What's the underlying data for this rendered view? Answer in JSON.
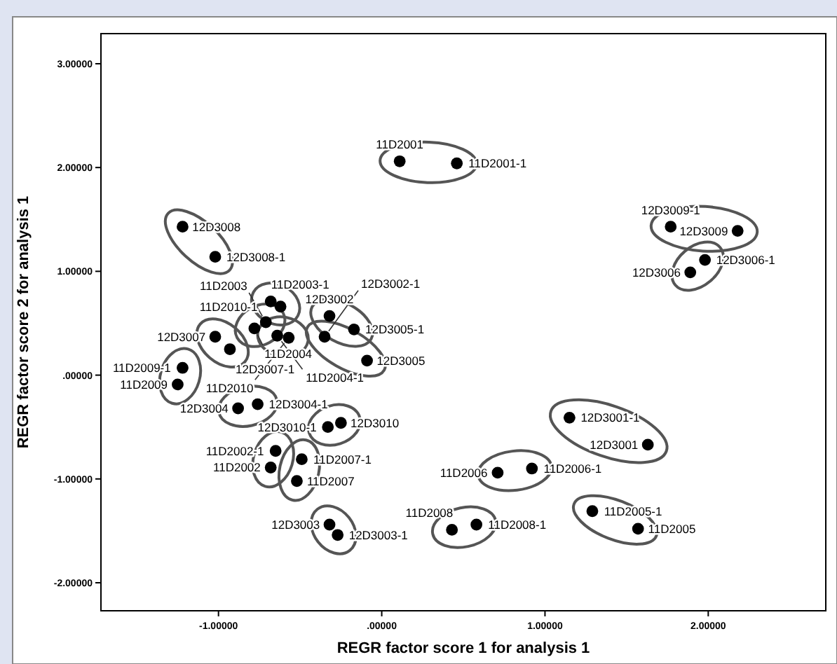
{
  "chart_data": {
    "type": "scatter",
    "xlabel": "REGR factor score   1 for analysis 1",
    "ylabel": "REGR factor score   2 for analysis 1",
    "xlim": [
      -1.72,
      2.72
    ],
    "ylim": [
      -2.27,
      3.29
    ],
    "xticks": [
      {
        "value": -1,
        "label": "-1.00000"
      },
      {
        "value": 0,
        "label": ".00000"
      },
      {
        "value": 1,
        "label": "1.00000"
      },
      {
        "value": 2,
        "label": "2.00000"
      }
    ],
    "yticks": [
      {
        "value": -2,
        "label": "-2.00000"
      },
      {
        "value": -1,
        "label": "-1.00000"
      },
      {
        "value": 0,
        "label": ".00000"
      },
      {
        "value": 1,
        "label": "1.00000"
      },
      {
        "value": 2,
        "label": "2.00000"
      },
      {
        "value": 3,
        "label": "3.00000"
      }
    ],
    "grid": false,
    "marker": "circle",
    "series": [
      {
        "color": "#000000",
        "x": [
          0.11,
          0.46,
          -1.22,
          -1.02,
          1.77,
          2.18,
          1.89,
          1.98,
          -0.68,
          -0.62,
          -0.32,
          -0.17,
          -0.71,
          -0.78,
          -1.02,
          -0.93,
          -0.64,
          -0.57,
          -0.35,
          -0.09,
          -1.22,
          -1.25,
          -0.76,
          -0.88,
          -0.25,
          -0.33,
          -0.65,
          -0.68,
          -0.49,
          -0.52,
          -0.32,
          -0.27,
          1.15,
          1.63,
          0.92,
          0.71,
          1.29,
          1.57,
          0.58,
          0.43
        ],
        "values": [
          2.06,
          2.04,
          1.43,
          1.14,
          1.43,
          1.39,
          0.99,
          1.11,
          0.71,
          0.66,
          0.57,
          0.44,
          0.51,
          0.45,
          0.37,
          0.25,
          0.38,
          0.36,
          0.37,
          0.14,
          0.07,
          -0.09,
          -0.28,
          -0.32,
          -0.46,
          -0.5,
          -0.73,
          -0.89,
          -0.81,
          -1.02,
          -1.44,
          -1.54,
          -0.41,
          -0.67,
          -0.9,
          -0.94,
          -1.31,
          -1.48,
          -1.44,
          -1.49
        ]
      }
    ],
    "annotations": [
      {
        "text": "11D2001",
        "x": 0.11,
        "y": 2.06
      },
      {
        "text": "11D2001-1",
        "x": 0.46,
        "y": 2.04
      },
      {
        "text": "12D3008",
        "x": -1.22,
        "y": 1.43
      },
      {
        "text": "12D3008-1",
        "x": -1.02,
        "y": 1.14
      },
      {
        "text": "12D3009-1",
        "x": 1.77,
        "y": 1.43
      },
      {
        "text": "12D3009",
        "x": 2.18,
        "y": 1.39
      },
      {
        "text": "12D3006",
        "x": 1.89,
        "y": 0.99
      },
      {
        "text": "12D3006-1",
        "x": 1.98,
        "y": 1.11
      },
      {
        "text": "11D2003-1",
        "x": -0.68,
        "y": 0.71
      },
      {
        "text": "11D2010-1",
        "x": -0.62,
        "y": 0.66
      },
      {
        "text": "12D3002",
        "x": -0.32,
        "y": 0.57
      },
      {
        "text": "12D3005-1",
        "x": -0.17,
        "y": 0.44
      },
      {
        "text": "11D2003",
        "x": -0.71,
        "y": 0.51
      },
      {
        "text": "11D2004",
        "x": -0.78,
        "y": 0.45
      },
      {
        "text": "12D3007",
        "x": -1.02,
        "y": 0.37
      },
      {
        "text": "12D3007-1",
        "x": -0.93,
        "y": 0.25
      },
      {
        "text": "11D2004-1",
        "x": -0.64,
        "y": 0.38
      },
      {
        "text": "11D2010",
        "x": -0.57,
        "y": 0.36
      },
      {
        "text": "12D3002-1",
        "x": -0.35,
        "y": 0.37
      },
      {
        "text": "12D3005",
        "x": -0.09,
        "y": 0.14
      },
      {
        "text": "11D2009-1",
        "x": -1.22,
        "y": 0.07
      },
      {
        "text": "11D2009",
        "x": -1.25,
        "y": -0.09
      },
      {
        "text": "12D3004-1",
        "x": -0.76,
        "y": -0.28
      },
      {
        "text": "12D3004",
        "x": -0.88,
        "y": -0.32
      },
      {
        "text": "12D3010",
        "x": -0.25,
        "y": -0.46
      },
      {
        "text": "12D3010-1",
        "x": -0.33,
        "y": -0.5
      },
      {
        "text": "11D2002-1",
        "x": -0.65,
        "y": -0.73
      },
      {
        "text": "11D2002",
        "x": -0.68,
        "y": -0.89
      },
      {
        "text": "11D2007-1",
        "x": -0.49,
        "y": -0.81
      },
      {
        "text": "11D2007",
        "x": -0.52,
        "y": -1.02
      },
      {
        "text": "12D3003",
        "x": -0.32,
        "y": -1.44
      },
      {
        "text": "12D3003-1",
        "x": -0.27,
        "y": -1.54
      },
      {
        "text": "12D3001-1",
        "x": 1.15,
        "y": -0.41
      },
      {
        "text": "12D3001",
        "x": 1.63,
        "y": -0.67
      },
      {
        "text": "11D2006-1",
        "x": 0.92,
        "y": -0.9
      },
      {
        "text": "11D2006",
        "x": 0.71,
        "y": -0.94
      },
      {
        "text": "11D2005-1",
        "x": 1.29,
        "y": -1.31
      },
      {
        "text": "11D2005",
        "x": 1.57,
        "y": -1.48
      },
      {
        "text": "11D2008-1",
        "x": 0.58,
        "y": -1.44
      },
      {
        "text": "11D2008",
        "x": 0.43,
        "y": -1.49
      }
    ]
  }
}
